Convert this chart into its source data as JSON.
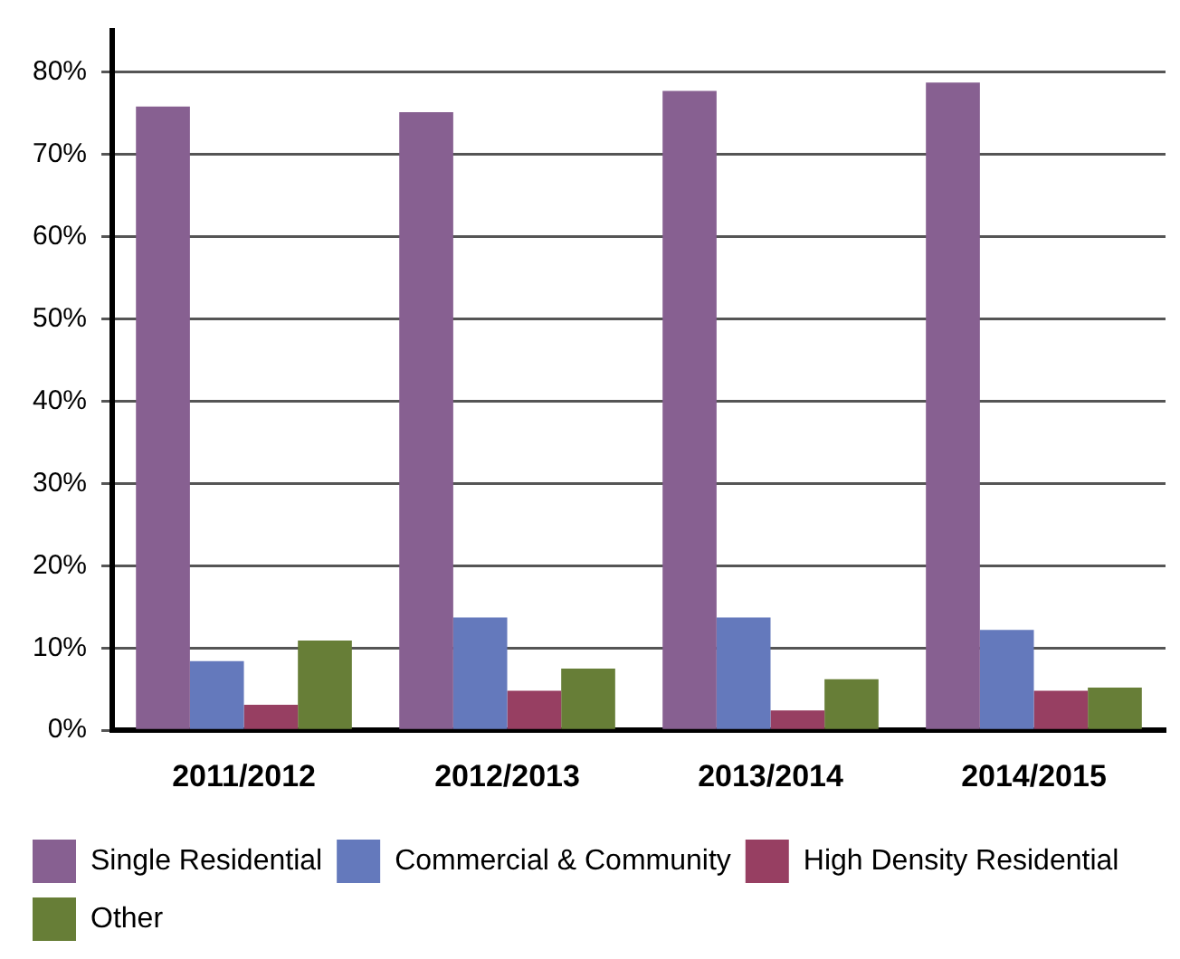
{
  "chart_data": {
    "type": "bar",
    "categories": [
      "2011/2012",
      "2012/2013",
      "2013/2014",
      "2014/2015"
    ],
    "series": [
      {
        "name": "Single Residential",
        "color": "#876091",
        "values": [
          75.8,
          75.1,
          77.7,
          78.7
        ]
      },
      {
        "name": "Commercial & Community",
        "color": "#6479bc",
        "values": [
          8.4,
          13.7,
          13.7,
          12.2
        ]
      },
      {
        "name": "High Density Residential",
        "color": "#973f62",
        "values": [
          3.1,
          4.8,
          2.4,
          4.8
        ]
      },
      {
        "name": "Other",
        "color": "#677e37",
        "values": [
          10.9,
          7.5,
          6.2,
          5.2
        ]
      }
    ],
    "ylim": [
      0,
      85
    ],
    "yticks": [
      {
        "value": 0,
        "label": "0%"
      },
      {
        "value": 10,
        "label": "10%"
      },
      {
        "value": 20,
        "label": "20%"
      },
      {
        "value": 30,
        "label": "30%"
      },
      {
        "value": 40,
        "label": "40%"
      },
      {
        "value": 50,
        "label": "50%"
      },
      {
        "value": 60,
        "label": "60%"
      },
      {
        "value": 70,
        "label": "70%"
      },
      {
        "value": 80,
        "label": "80%"
      }
    ],
    "grid": "y",
    "legend": "bottom left"
  }
}
